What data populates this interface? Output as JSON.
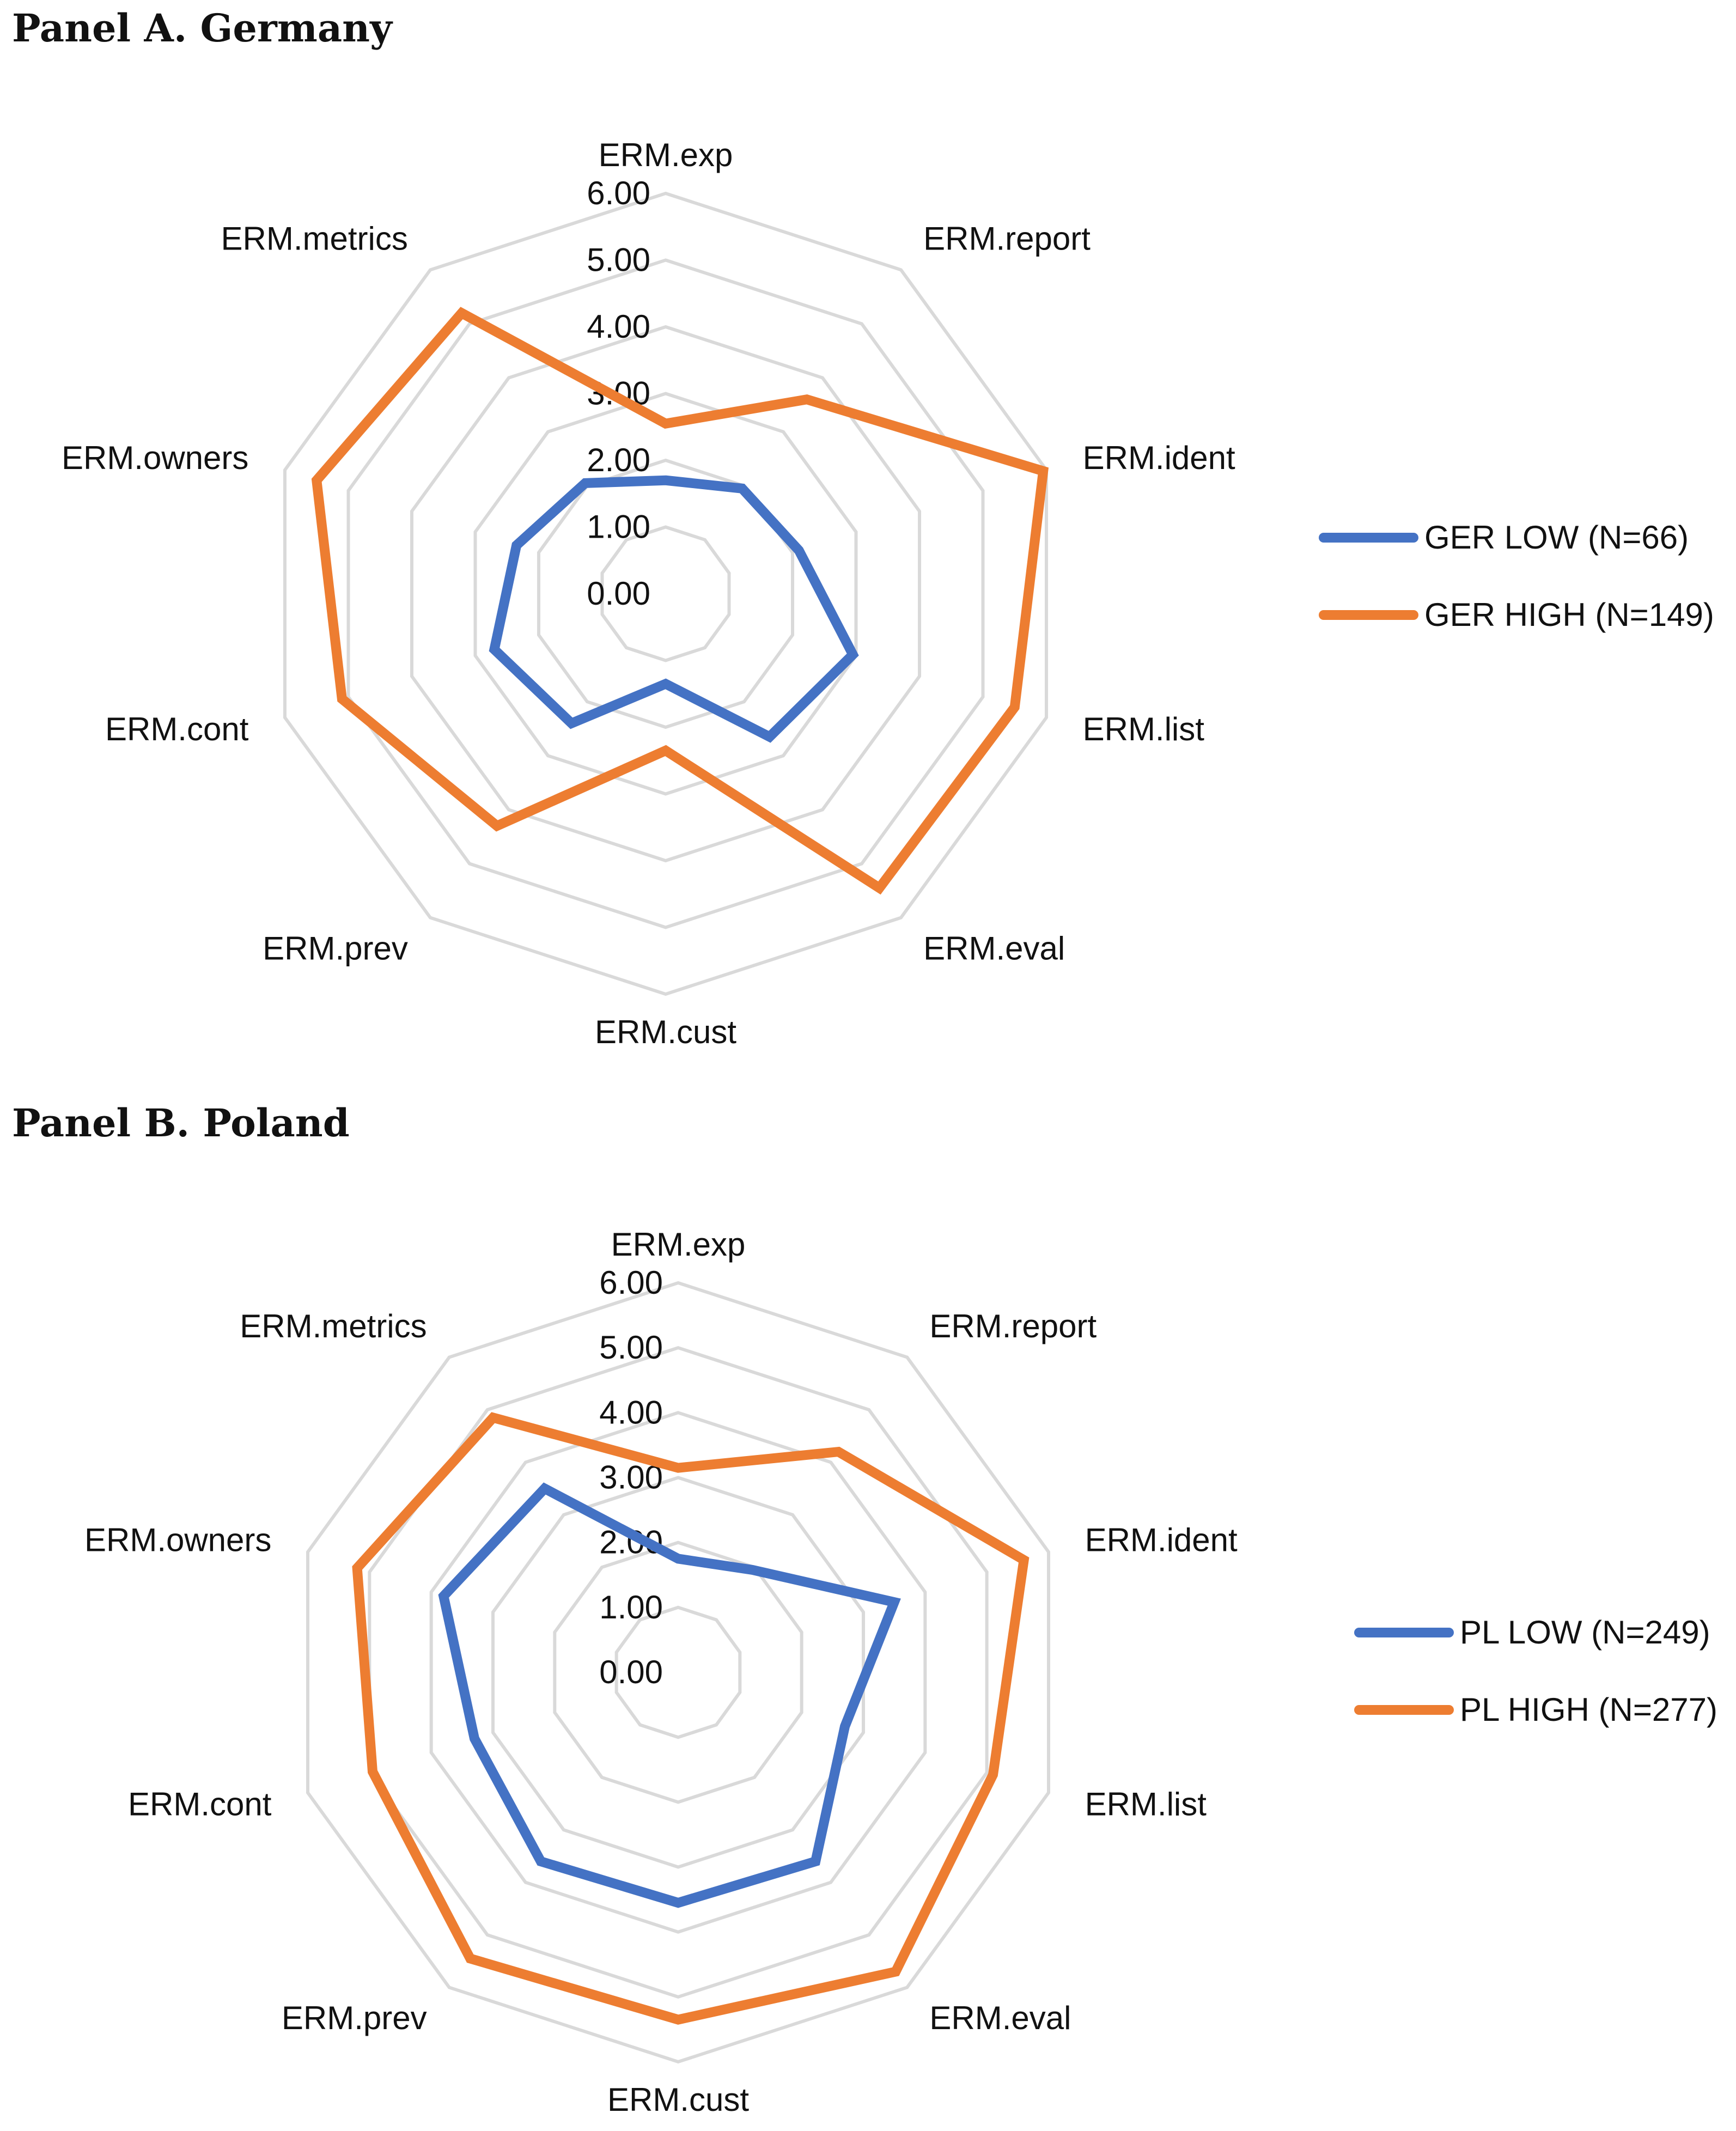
{
  "panels": [
    {
      "title": "Panel A. Germany"
    },
    {
      "title": "Panel B. Poland"
    }
  ],
  "chart_data": [
    {
      "type": "radar",
      "categories": [
        "ERM.exp",
        "ERM.report",
        "ERM.ident",
        "ERM.list",
        "ERM.eval",
        "ERM.cust",
        "ERM.prev",
        "ERM.cont",
        "ERM.owners",
        "ERM.metrics"
      ],
      "rlim": [
        0,
        6
      ],
      "ticks": [
        "0.00",
        "1.00",
        "2.00",
        "3.00",
        "4.00",
        "5.00",
        "6.00"
      ],
      "grid": true,
      "legend_position": "right",
      "series": [
        {
          "name": "GER LOW (N=66)",
          "color": "#4472C4",
          "values": [
            1.7,
            1.95,
            2.1,
            2.95,
            2.65,
            1.35,
            2.4,
            2.7,
            2.35,
            2.05
          ]
        },
        {
          "name": "GER HIGH (N=149)",
          "color": "#ED7D31",
          "values": [
            2.55,
            3.6,
            5.95,
            5.5,
            5.45,
            2.35,
            4.3,
            5.1,
            5.5,
            5.2
          ]
        }
      ]
    },
    {
      "type": "radar",
      "categories": [
        "ERM.exp",
        "ERM.report",
        "ERM.ident",
        "ERM.list",
        "ERM.eval",
        "ERM.cust",
        "ERM.prev",
        "ERM.cont",
        "ERM.owners",
        "ERM.metrics"
      ],
      "rlim": [
        0,
        6
      ],
      "ticks": [
        "0.00",
        "1.00",
        "2.00",
        "3.00",
        "4.00",
        "5.00",
        "6.00"
      ],
      "grid": true,
      "legend_position": "right",
      "series": [
        {
          "name": "PL LOW (N=249)",
          "color": "#4472C4",
          "values": [
            1.75,
            1.95,
            3.5,
            2.7,
            3.6,
            3.55,
            3.6,
            3.3,
            3.8,
            3.5
          ]
        },
        {
          "name": "PL HIGH (N=277)",
          "color": "#ED7D31",
          "values": [
            3.15,
            4.2,
            5.6,
            5.1,
            5.7,
            5.35,
            5.45,
            4.95,
            5.2,
            4.85
          ]
        }
      ]
    }
  ]
}
